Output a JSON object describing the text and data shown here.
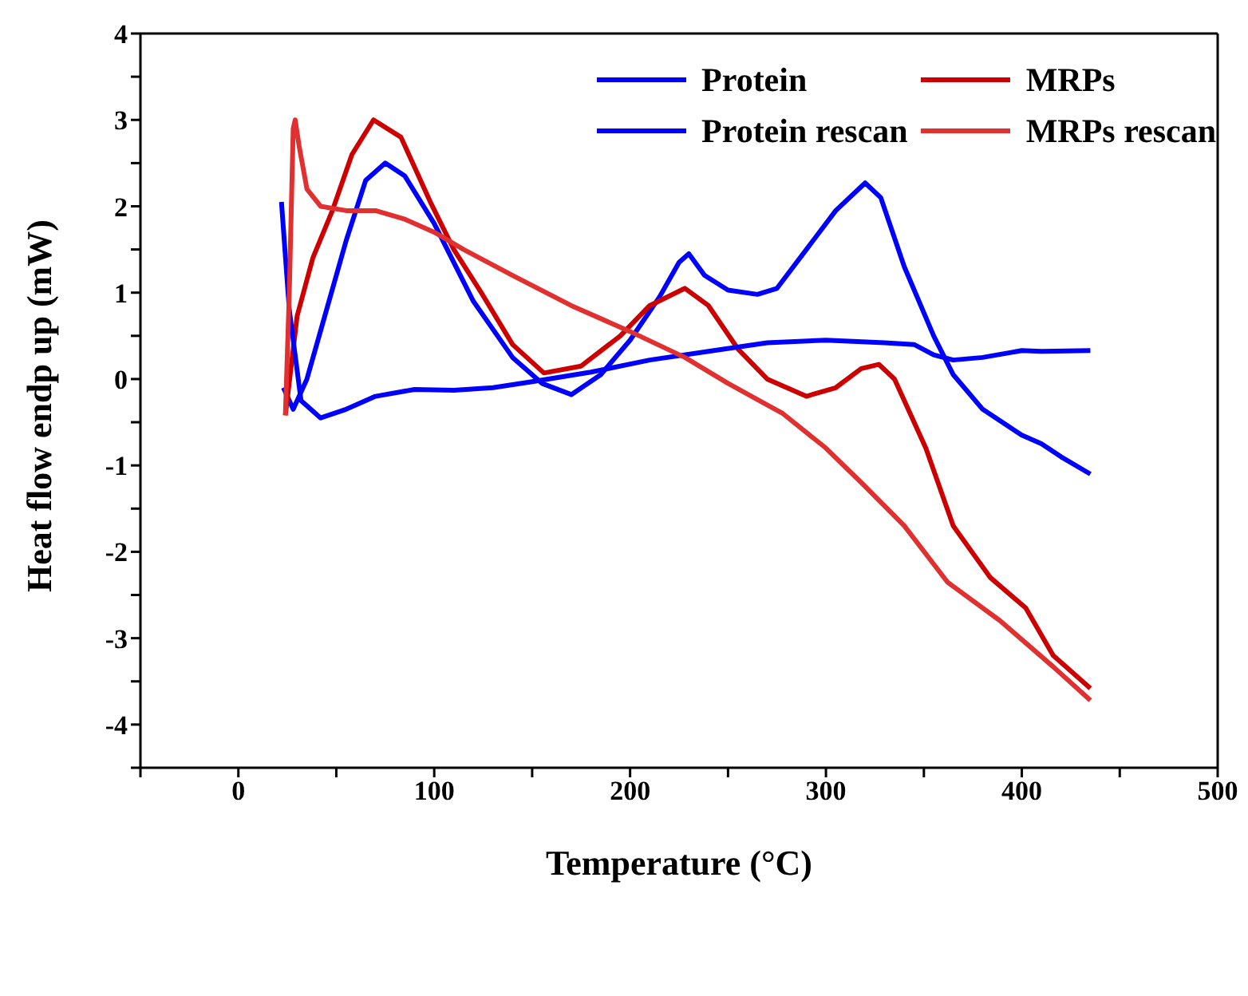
{
  "chart_data": {
    "type": "line",
    "xlabel": "Temperature (°C)",
    "ylabel": "Heat flow endp up (mW)",
    "xlim": [
      -50,
      500
    ],
    "ylim": [
      -4.5,
      4
    ],
    "xticks": [
      {
        "value": -50,
        "label": null
      },
      0,
      {
        "value": 50,
        "label": null
      },
      100,
      {
        "value": 150,
        "label": null
      },
      200,
      {
        "value": 250,
        "label": null
      },
      300,
      {
        "value": 350,
        "label": null
      },
      400,
      {
        "value": 450,
        "label": null
      },
      500
    ],
    "yticks": [
      {
        "value": -4.5,
        "label": null
      },
      -4,
      {
        "value": -3.5,
        "label": null
      },
      -3,
      {
        "value": -2.5,
        "label": null
      },
      -2,
      {
        "value": -1.5,
        "label": null
      },
      -1,
      {
        "value": -0.5,
        "label": null
      },
      0,
      {
        "value": 0.5,
        "label": null
      },
      1,
      {
        "value": 1.5,
        "label": null
      },
      2,
      {
        "value": 2.5,
        "label": null
      },
      3,
      {
        "value": 3.5,
        "label": null
      },
      4
    ],
    "legend": "top right",
    "marker": "none",
    "line_style": "solid",
    "series": [
      {
        "name": "Protein",
        "color": "#0000ff",
        "x": [
          23,
          28,
          35,
          45,
          55,
          65,
          75,
          85,
          100,
          120,
          140,
          155,
          170,
          185,
          200,
          215,
          225,
          230,
          238,
          250,
          265,
          275,
          290,
          305,
          320,
          328,
          340,
          355,
          365,
          380,
          400,
          410,
          420,
          435
        ],
        "values": [
          -0.1,
          -0.35,
          0,
          0.8,
          1.6,
          2.3,
          2.5,
          2.35,
          1.8,
          0.9,
          0.25,
          -0.05,
          -0.18,
          0.05,
          0.45,
          0.95,
          1.35,
          1.45,
          1.2,
          1.03,
          0.98,
          1.05,
          1.5,
          1.95,
          2.27,
          2.1,
          1.3,
          0.5,
          0.05,
          -0.35,
          -0.65,
          -0.75,
          -0.9,
          -1.1
        ]
      },
      {
        "name": "MRPs",
        "color": "#cc0000",
        "x": [
          24,
          30,
          38,
          48,
          58,
          69,
          83,
          98,
          110,
          124,
          140,
          156,
          175,
          195,
          210,
          228,
          240,
          255,
          270,
          290,
          305,
          318,
          327,
          335,
          351,
          365,
          384,
          402,
          416,
          435
        ],
        "values": [
          -0.42,
          0.73,
          1.4,
          1.95,
          2.6,
          3.0,
          2.8,
          2.05,
          1.5,
          1.0,
          0.4,
          0.07,
          0.15,
          0.5,
          0.85,
          1.05,
          0.85,
          0.35,
          0.0,
          -0.2,
          -0.1,
          0.12,
          0.17,
          0.0,
          -0.8,
          -1.7,
          -2.3,
          -2.65,
          -3.2,
          -3.58
        ]
      },
      {
        "name": "Protein rescan",
        "color": "#0000ff",
        "x": [
          22,
          26,
          32,
          42,
          55,
          70,
          90,
          110,
          130,
          150,
          180,
          210,
          240,
          270,
          300,
          330,
          345,
          355,
          365,
          380,
          400,
          410,
          435
        ],
        "values": [
          2.05,
          0.8,
          -0.25,
          -0.45,
          -0.35,
          -0.2,
          -0.12,
          -0.13,
          -0.1,
          -0.03,
          0.08,
          0.22,
          0.32,
          0.42,
          0.45,
          0.42,
          0.4,
          0.28,
          0.22,
          0.25,
          0.33,
          0.32,
          0.33
        ]
      },
      {
        "name": "MRPs rescan",
        "color": "#e03030",
        "x": [
          24,
          26,
          28,
          29,
          31,
          35,
          42,
          55,
          70,
          85,
          100,
          115,
          140,
          170,
          200,
          228,
          250,
          278,
          300,
          319,
          340,
          362,
          389,
          416,
          435
        ],
        "values": [
          -0.42,
          1.0,
          2.9,
          3.0,
          2.7,
          2.2,
          2.0,
          1.95,
          1.95,
          1.85,
          1.7,
          1.5,
          1.2,
          0.85,
          0.55,
          0.25,
          -0.05,
          -0.4,
          -0.8,
          -1.22,
          -1.7,
          -2.35,
          -2.8,
          -3.33,
          -3.72
        ]
      }
    ]
  }
}
